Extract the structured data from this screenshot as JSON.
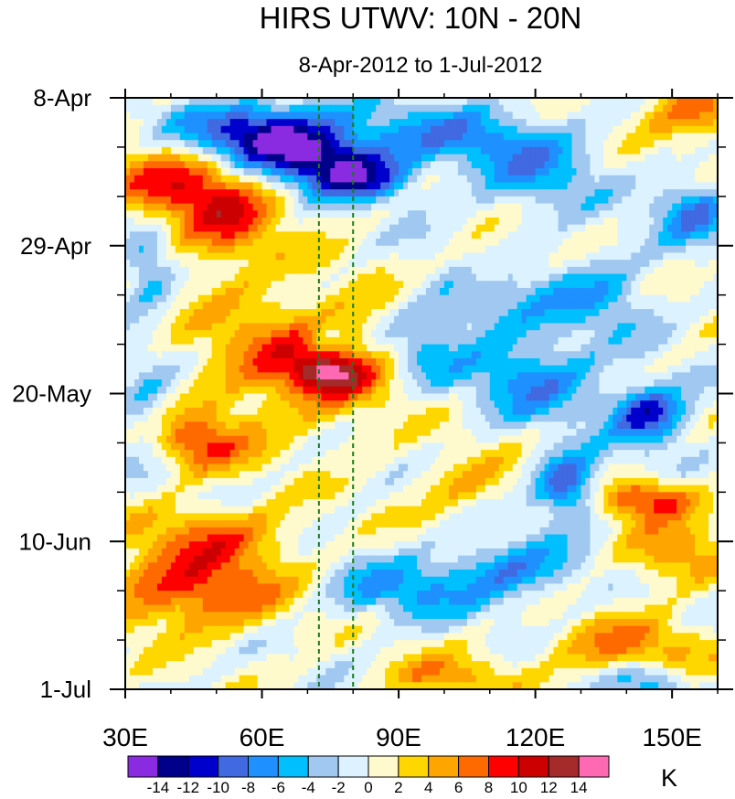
{
  "chart_data": {
    "type": "heatmap",
    "title": "HIRS UTWV: 10N - 20N",
    "subtitle": "8-Apr-2012 to 1-Jul-2012",
    "xlim": [
      30,
      160
    ],
    "x_ticks": [
      30,
      60,
      90,
      120,
      150
    ],
    "x_tick_labels": [
      "30E",
      "60E",
      "90E",
      "120E",
      "150E"
    ],
    "y_range_days": [
      0,
      84
    ],
    "y_ticks_days": [
      0,
      21,
      42,
      63,
      84
    ],
    "y_tick_labels": [
      "8-Apr",
      "29-Apr",
      "20-May",
      "10-Jun",
      "1-Jul"
    ],
    "y_minor_step_days": 7,
    "reference_lines_lon": [
      72.5,
      80
    ],
    "reference_line_color": "#1a7a1a",
    "colorbar": {
      "unit": "K",
      "levels": [
        -14,
        -12,
        -10,
        -8,
        -6,
        -4,
        -2,
        0,
        2,
        4,
        6,
        8,
        10,
        12,
        14
      ],
      "level_labels": [
        "-14",
        "-12",
        "-10",
        "-8",
        "-6",
        "-4",
        "-2",
        "0",
        "2",
        "4",
        "6",
        "8",
        "10",
        "12",
        "14"
      ],
      "colors": [
        "#8a2be2",
        "#00008b",
        "#0000cd",
        "#4169e1",
        "#1e90ff",
        "#00bfff",
        "#a0c8f0",
        "#dcf2ff",
        "#fffacd",
        "#ffd700",
        "#ffa500",
        "#ff6a00",
        "#ff0000",
        "#cd0000",
        "#a52a2a",
        "#ff69b4"
      ]
    },
    "anomaly_features": [
      {
        "lon": 60,
        "day": 5,
        "value": -14,
        "lon_sigma": 12,
        "day_sigma": 3
      },
      {
        "lon": 75,
        "day": 9,
        "value": -11,
        "lon_sigma": 10,
        "day_sigma": 2.5
      },
      {
        "lon": 82,
        "day": 12,
        "value": -8,
        "lon_sigma": 8,
        "day_sigma": 2
      },
      {
        "lon": 38,
        "day": 12,
        "value": 7,
        "lon_sigma": 10,
        "day_sigma": 4
      },
      {
        "lon": 52,
        "day": 17,
        "value": 8,
        "lon_sigma": 8,
        "day_sigma": 5
      },
      {
        "lon": 68,
        "day": 37,
        "value": 7,
        "lon_sigma": 16,
        "day_sigma": 7
      },
      {
        "lon": 75,
        "day": 39,
        "value": 9,
        "lon_sigma": 6,
        "day_sigma": 2
      },
      {
        "lon": 74,
        "day": 34,
        "value": -4,
        "lon_sigma": 3,
        "day_sigma": 2
      },
      {
        "lon": 45,
        "day": 49,
        "value": 8,
        "lon_sigma": 8,
        "day_sigma": 3
      },
      {
        "lon": 45,
        "day": 70,
        "value": 9,
        "lon_sigma": 14,
        "day_sigma": 4
      },
      {
        "lon": 50,
        "day": 62,
        "value": 6,
        "lon_sigma": 12,
        "day_sigma": 3
      },
      {
        "lon": 145,
        "day": 45,
        "value": -11,
        "lon_sigma": 6,
        "day_sigma": 3
      },
      {
        "lon": 127,
        "day": 55,
        "value": -11,
        "lon_sigma": 5,
        "day_sigma": 3
      },
      {
        "lon": 145,
        "day": 57,
        "value": 9,
        "lon_sigma": 8,
        "day_sigma": 2
      },
      {
        "lon": 155,
        "day": 2,
        "value": 7,
        "lon_sigma": 8,
        "day_sigma": 3
      },
      {
        "lon": 155,
        "day": 16,
        "value": -8,
        "lon_sigma": 6,
        "day_sigma": 3
      },
      {
        "lon": 110,
        "day": 24,
        "value": 6,
        "lon_sigma": 6,
        "day_sigma": 3
      },
      {
        "lon": 120,
        "day": 40,
        "value": -7,
        "lon_sigma": 10,
        "day_sigma": 4
      },
      {
        "lon": 110,
        "day": 28,
        "value": -6,
        "lon_sigma": 10,
        "day_sigma": 5
      },
      {
        "lon": 95,
        "day": 36,
        "value": -5,
        "lon_sigma": 6,
        "day_sigma": 4
      },
      {
        "lon": 35,
        "day": 25,
        "value": -6,
        "lon_sigma": 4,
        "day_sigma": 4
      },
      {
        "lon": 35,
        "day": 45,
        "value": -5,
        "lon_sigma": 5,
        "day_sigma": 5
      },
      {
        "lon": 115,
        "day": 67,
        "value": -7,
        "lon_sigma": 10,
        "day_sigma": 3
      },
      {
        "lon": 90,
        "day": 70,
        "value": -6,
        "lon_sigma": 12,
        "day_sigma": 3
      },
      {
        "lon": 140,
        "day": 78,
        "value": 6,
        "lon_sigma": 12,
        "day_sigma": 3
      },
      {
        "lon": 150,
        "day": 65,
        "value": 6,
        "lon_sigma": 8,
        "day_sigma": 3
      },
      {
        "lon": 100,
        "day": 82,
        "value": 5,
        "lon_sigma": 10,
        "day_sigma": 2
      },
      {
        "lon": 145,
        "day": 83,
        "value": -6,
        "lon_sigma": 6,
        "day_sigma": 2
      },
      {
        "lon": 100,
        "day": 5,
        "value": -6,
        "lon_sigma": 14,
        "day_sigma": 3
      },
      {
        "lon": 120,
        "day": 10,
        "value": -6,
        "lon_sigma": 10,
        "day_sigma": 4
      },
      {
        "lon": 135,
        "day": 28,
        "value": -5,
        "lon_sigma": 8,
        "day_sigma": 4
      },
      {
        "lon": 105,
        "day": 55,
        "value": 4,
        "lon_sigma": 8,
        "day_sigma": 3
      }
    ]
  }
}
